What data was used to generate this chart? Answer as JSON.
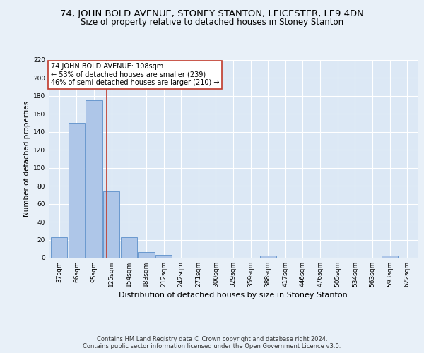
{
  "title1": "74, JOHN BOLD AVENUE, STONEY STANTON, LEICESTER, LE9 4DN",
  "title2": "Size of property relative to detached houses in Stoney Stanton",
  "xlabel": "Distribution of detached houses by size in Stoney Stanton",
  "ylabel": "Number of detached properties",
  "footnote1": "Contains HM Land Registry data © Crown copyright and database right 2024.",
  "footnote2": "Contains public sector information licensed under the Open Government Licence v3.0.",
  "categories": [
    "37sqm",
    "66sqm",
    "95sqm",
    "125sqm",
    "154sqm",
    "183sqm",
    "212sqm",
    "242sqm",
    "271sqm",
    "300sqm",
    "329sqm",
    "359sqm",
    "388sqm",
    "417sqm",
    "446sqm",
    "476sqm",
    "505sqm",
    "534sqm",
    "563sqm",
    "593sqm",
    "622sqm"
  ],
  "values": [
    23,
    150,
    175,
    74,
    23,
    6,
    3,
    0,
    0,
    0,
    0,
    0,
    2,
    0,
    0,
    0,
    0,
    0,
    0,
    2,
    0
  ],
  "bar_color": "#aec6e8",
  "bar_edge_color": "#5b8fc9",
  "vline_x": 2.72,
  "vline_color": "#c0392b",
  "annotation_text": "74 JOHN BOLD AVENUE: 108sqm\n← 53% of detached houses are smaller (239)\n46% of semi-detached houses are larger (210) →",
  "annotation_box_edgecolor": "#c0392b",
  "annotation_box_facecolor": "#ffffff",
  "ylim": [
    0,
    220
  ],
  "yticks": [
    0,
    20,
    40,
    60,
    80,
    100,
    120,
    140,
    160,
    180,
    200,
    220
  ],
  "bg_color": "#dce8f5",
  "grid_color": "#ffffff",
  "fig_bg_color": "#e8f0f8",
  "title1_fontsize": 9.5,
  "title2_fontsize": 8.5,
  "xlabel_fontsize": 8,
  "ylabel_fontsize": 7.5,
  "tick_fontsize": 6.5,
  "footnote_fontsize": 6.0
}
